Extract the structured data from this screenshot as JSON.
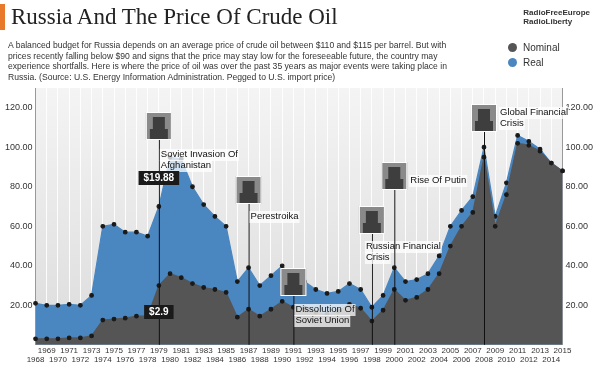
{
  "chart_data": {
    "type": "line",
    "title": "Russia And The Price Of Crude Oil",
    "subtitle": "A balanced budget for Russia depends on an average price of crude oil between $110 and $115 per barrel. But with prices recently falling below $90 and signs that the price may stay low for the foreseeable future, the country may experience shortfalls. Here is where the price of oil was over the past 35 years as major events were taking place in Russia. (Source: U.S. Energy Information Administration. Pegged to U.S. import price)",
    "logo": [
      "RadioFreeEurope",
      "RadioLiberty"
    ],
    "x": [
      1968,
      1969,
      1970,
      1971,
      1972,
      1973,
      1974,
      1975,
      1976,
      1977,
      1978,
      1979,
      1980,
      1981,
      1982,
      1983,
      1984,
      1985,
      1986,
      1987,
      1988,
      1989,
      1990,
      1991,
      1992,
      1993,
      1994,
      1995,
      1996,
      1997,
      1998,
      1999,
      2000,
      2001,
      2002,
      2003,
      2004,
      2005,
      2006,
      2007,
      2008,
      2009,
      2010,
      2011,
      2012,
      2013,
      2014,
      2015
    ],
    "series": [
      {
        "name": "Nominal",
        "color": "#555555",
        "marker": "circle",
        "values": [
          3,
          3,
          3,
          3.5,
          3.5,
          4.5,
          12.5,
          13,
          13.5,
          14.5,
          14.5,
          30,
          36,
          34,
          31,
          29,
          28,
          26.5,
          14,
          18,
          14.5,
          18,
          22,
          19,
          18.5,
          16.5,
          15.5,
          17,
          20.5,
          18.5,
          12,
          17.5,
          28,
          22.5,
          24,
          28,
          36,
          50,
          60,
          67,
          95,
          60,
          76,
          102,
          101,
          98,
          92,
          88
        ]
      },
      {
        "name": "Real",
        "color": "#4a86c0",
        "marker": "circle",
        "values": [
          21,
          20,
          20,
          20.5,
          20,
          25,
          60,
          61,
          57,
          57,
          55,
          70,
          95,
          94,
          80,
          71,
          65,
          60,
          32,
          39,
          30,
          35,
          40,
          34,
          32,
          28,
          26,
          27,
          31,
          28,
          19,
          25,
          39,
          32,
          33,
          36,
          45,
          60,
          68,
          75,
          100,
          65,
          82,
          106,
          103,
          99,
          92,
          88
        ]
      }
    ],
    "ylim": [
      0,
      130
    ],
    "yticks": [
      {
        "value": 20,
        "label": "20.00"
      },
      {
        "value": 40,
        "label": "40.00"
      },
      {
        "value": 60,
        "label": "60.00"
      },
      {
        "value": 80,
        "label": "80.00"
      },
      {
        "value": 100,
        "label": "100.00"
      },
      {
        "value": 120,
        "label": "120.00"
      }
    ],
    "grid": true,
    "legend": "top-right",
    "annotations": [
      {
        "x": 1979,
        "text": "Soviet Invasion Of Afghanistan"
      },
      {
        "x": 1987,
        "text": "Perestroika"
      },
      {
        "x": 1991,
        "text": "Dissolution Of Soviet Union"
      },
      {
        "x": 1998,
        "text": "Russian Financial Crisis"
      },
      {
        "x": 2000,
        "text": "Rise Of Putin"
      },
      {
        "x": 2008,
        "text": "Global Financial Crisis"
      }
    ],
    "callouts": [
      {
        "x": 1979,
        "text": "$19.88"
      },
      {
        "x": 1979,
        "text": "$2.9"
      }
    ]
  }
}
